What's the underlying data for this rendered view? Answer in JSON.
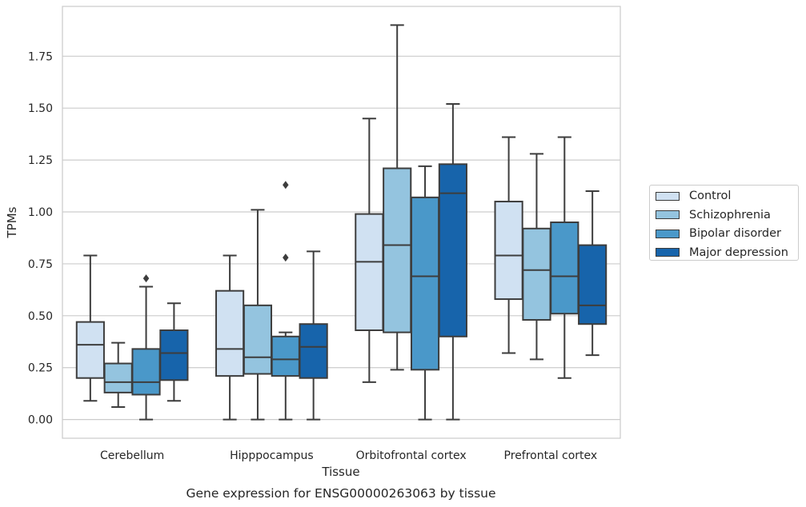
{
  "chart_data": {
    "type": "box",
    "title": "",
    "caption": "Gene expression for ENSG00000263063 by tissue",
    "xlabel": "Tissue",
    "ylabel": "TPMs",
    "ylim": [
      -0.09,
      1.99
    ],
    "yticks": [
      "0.00",
      "0.25",
      "0.50",
      "0.75",
      "1.00",
      "1.25",
      "1.50",
      "1.75"
    ],
    "categories": [
      "Cerebellum",
      "Hipppocampus",
      "Orbitofrontal cortex",
      "Prefrontal cortex"
    ],
    "grid": "horizontal",
    "legend_position": "right",
    "series": [
      {
        "name": "Control",
        "color": "#d0e1f2",
        "boxes": [
          {
            "whisker_low": 0.09,
            "q1": 0.2,
            "median": 0.36,
            "q3": 0.47,
            "whisker_high": 0.79,
            "outliers": []
          },
          {
            "whisker_low": 0.0,
            "q1": 0.21,
            "median": 0.34,
            "q3": 0.62,
            "whisker_high": 0.79,
            "outliers": []
          },
          {
            "whisker_low": 0.18,
            "q1": 0.43,
            "median": 0.76,
            "q3": 0.99,
            "whisker_high": 1.45,
            "outliers": []
          },
          {
            "whisker_low": 0.32,
            "q1": 0.58,
            "median": 0.79,
            "q3": 1.05,
            "whisker_high": 1.36,
            "outliers": []
          }
        ]
      },
      {
        "name": "Schizophrenia",
        "color": "#94c4df",
        "boxes": [
          {
            "whisker_low": 0.06,
            "q1": 0.13,
            "median": 0.18,
            "q3": 0.27,
            "whisker_high": 0.37,
            "outliers": []
          },
          {
            "whisker_low": 0.0,
            "q1": 0.22,
            "median": 0.3,
            "q3": 0.55,
            "whisker_high": 1.01,
            "outliers": []
          },
          {
            "whisker_low": 0.24,
            "q1": 0.42,
            "median": 0.84,
            "q3": 1.21,
            "whisker_high": 1.9,
            "outliers": []
          },
          {
            "whisker_low": 0.29,
            "q1": 0.48,
            "median": 0.72,
            "q3": 0.92,
            "whisker_high": 1.28,
            "outliers": []
          }
        ]
      },
      {
        "name": "Bipolar disorder",
        "color": "#4a98c9",
        "boxes": [
          {
            "whisker_low": 0.0,
            "q1": 0.12,
            "median": 0.18,
            "q3": 0.34,
            "whisker_high": 0.64,
            "outliers": [
              0.68
            ]
          },
          {
            "whisker_low": 0.0,
            "q1": 0.21,
            "median": 0.29,
            "q3": 0.4,
            "whisker_high": 0.42,
            "outliers": [
              0.78,
              1.13
            ]
          },
          {
            "whisker_low": 0.0,
            "q1": 0.24,
            "median": 0.69,
            "q3": 1.07,
            "whisker_high": 1.22,
            "outliers": []
          },
          {
            "whisker_low": 0.2,
            "q1": 0.51,
            "median": 0.69,
            "q3": 0.95,
            "whisker_high": 1.36,
            "outliers": []
          }
        ]
      },
      {
        "name": "Major depression",
        "color": "#1764ab",
        "boxes": [
          {
            "whisker_low": 0.09,
            "q1": 0.19,
            "median": 0.32,
            "q3": 0.43,
            "whisker_high": 0.56,
            "outliers": []
          },
          {
            "whisker_low": 0.0,
            "q1": 0.2,
            "median": 0.35,
            "q3": 0.46,
            "whisker_high": 0.81,
            "outliers": []
          },
          {
            "whisker_low": 0.0,
            "q1": 0.4,
            "median": 1.09,
            "q3": 1.23,
            "whisker_high": 1.52,
            "outliers": []
          },
          {
            "whisker_low": 0.31,
            "q1": 0.46,
            "median": 0.55,
            "q3": 0.84,
            "whisker_high": 1.1,
            "outliers": []
          }
        ]
      }
    ]
  }
}
